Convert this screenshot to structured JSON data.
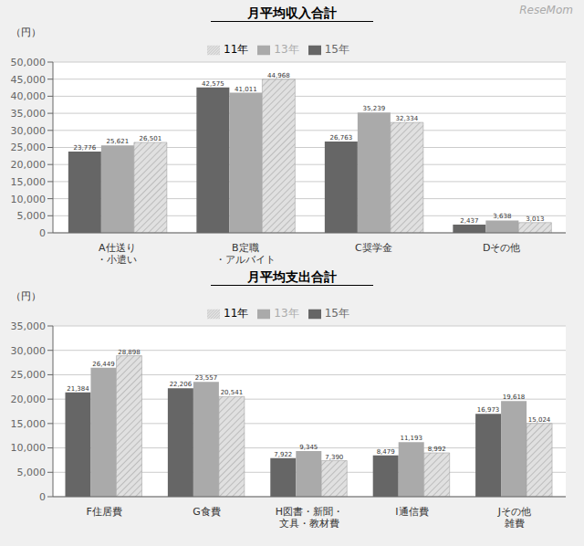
{
  "chart_data": [
    {
      "type": "bar",
      "title": "月平均収入合計",
      "ylabel": "（円）",
      "annotations": [
        "ReseMom"
      ],
      "categories": [
        "A仕送り\n・小遣い",
        "B定職\n・アルバイト",
        "C奨学金",
        "Dその他"
      ],
      "series": [
        {
          "name": "15年",
          "color": "#666666",
          "values": [
            23776,
            42575,
            26763,
            2437
          ],
          "value_labels": [
            "23,776",
            "42,575",
            "26,763",
            "2,437"
          ]
        },
        {
          "name": "13年",
          "color": "#aaaaaa",
          "values": [
            25621,
            41011,
            35239,
            3638
          ],
          "value_labels": [
            "25,621",
            "41,011",
            "35,239",
            "3,638"
          ]
        },
        {
          "name": "11年",
          "color": "#e0e0e0",
          "values": [
            26501,
            44968,
            32334,
            3013
          ],
          "value_labels": [
            "26,501",
            "44,968",
            "32,334",
            "3,013"
          ]
        }
      ],
      "ylim": [
        0,
        50000
      ],
      "yticks": [
        0,
        {
          "value": 5000,
          "label": "5,000"
        },
        {
          "value": 10000,
          "label": "10,000"
        },
        {
          "value": 15000,
          "label": "15,000"
        },
        {
          "value": 20000,
          "label": "20,000"
        },
        {
          "value": 25000,
          "label": "25,000"
        },
        {
          "value": 30000,
          "label": "30,000"
        },
        {
          "value": 35000,
          "label": "35,000"
        },
        {
          "value": 40000,
          "label": "40,000"
        },
        {
          "value": 45000,
          "label": "45,000"
        },
        {
          "value": 50000,
          "label": "50,000"
        }
      ],
      "grid": true,
      "legend": "top",
      "data_labels": true
    },
    {
      "type": "bar",
      "title": "月平均支出合計",
      "ylabel": "（円）",
      "categories": [
        "F住居費",
        "G食費",
        "H図書・新聞・\n文具・教材費",
        "I通信費",
        "Jその他\n雑費"
      ],
      "series": [
        {
          "name": "15年",
          "color": "#666666",
          "values": [
            21384,
            22206,
            7922,
            8479,
            16973
          ],
          "value_labels": [
            "21,384",
            "22,206",
            "7,922",
            "8,479",
            "16,973"
          ]
        },
        {
          "name": "13年",
          "color": "#aaaaaa",
          "values": [
            26449,
            23557,
            9345,
            11193,
            19618
          ],
          "value_labels": [
            "26,449",
            "23,557",
            "9,345",
            "11,193",
            "19,618"
          ]
        },
        {
          "name": "11年",
          "color": "#e0e0e0",
          "values": [
            28898,
            20541,
            7390,
            8992,
            15024
          ],
          "value_labels": [
            "28,898",
            "20,541",
            "7,390",
            "8,992",
            "15,024"
          ]
        }
      ],
      "ylim": [
        0,
        35000
      ],
      "yticks": [
        0,
        {
          "value": 5000,
          "label": "5,000"
        },
        {
          "value": 10000,
          "label": "10,000"
        },
        {
          "value": 15000,
          "label": "15,000"
        },
        {
          "value": 20000,
          "label": "20,000"
        },
        {
          "value": 25000,
          "label": "25,000"
        },
        {
          "value": 30000,
          "label": "30,000"
        },
        {
          "value": 35000,
          "label": "35,000"
        }
      ],
      "grid": true,
      "legend": "top",
      "data_labels": true
    }
  ]
}
